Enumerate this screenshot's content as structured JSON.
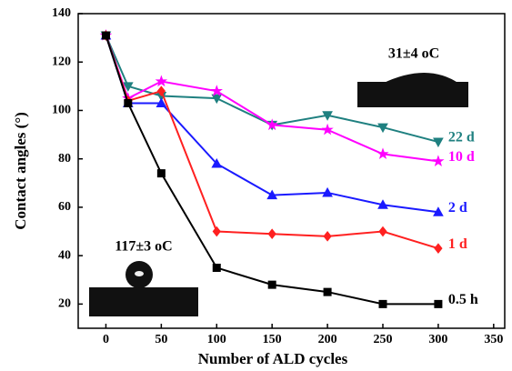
{
  "chart_data": {
    "type": "line",
    "x_label": "Number of ALD cycles",
    "y_label": "Contact angles (°)",
    "x": [
      0,
      20,
      50,
      100,
      150,
      200,
      250,
      300
    ],
    "series": [
      {
        "name": "22 d",
        "color": "#1f8080",
        "marker": "triangle-down",
        "values": [
          131,
          110,
          106,
          105,
          94,
          98,
          93,
          87
        ]
      },
      {
        "name": "10 d",
        "color": "#ff00ff",
        "marker": "star",
        "values": [
          131,
          105,
          112,
          108,
          94,
          92,
          82,
          79
        ]
      },
      {
        "name": "2 d",
        "color": "#1a1aff",
        "marker": "triangle-up",
        "values": [
          131,
          103,
          103,
          78,
          65,
          66,
          61,
          58
        ]
      },
      {
        "name": "1 d",
        "color": "#ff2020",
        "marker": "diamond",
        "values": [
          131,
          104,
          108,
          50,
          49,
          48,
          50,
          43
        ]
      },
      {
        "name": "0.5 h",
        "color": "#000000",
        "marker": "square",
        "values": [
          131,
          103,
          74,
          35,
          28,
          25,
          20,
          20
        ]
      }
    ],
    "annotations": [
      "31±4 oC",
      "117±3 oC"
    ],
    "xlim": [
      -25,
      360
    ],
    "ylim": [
      10,
      140
    ],
    "xticks": [
      0,
      50,
      100,
      150,
      200,
      250,
      300,
      350
    ],
    "yticks": [
      20,
      40,
      60,
      80,
      100,
      120,
      140
    ]
  }
}
